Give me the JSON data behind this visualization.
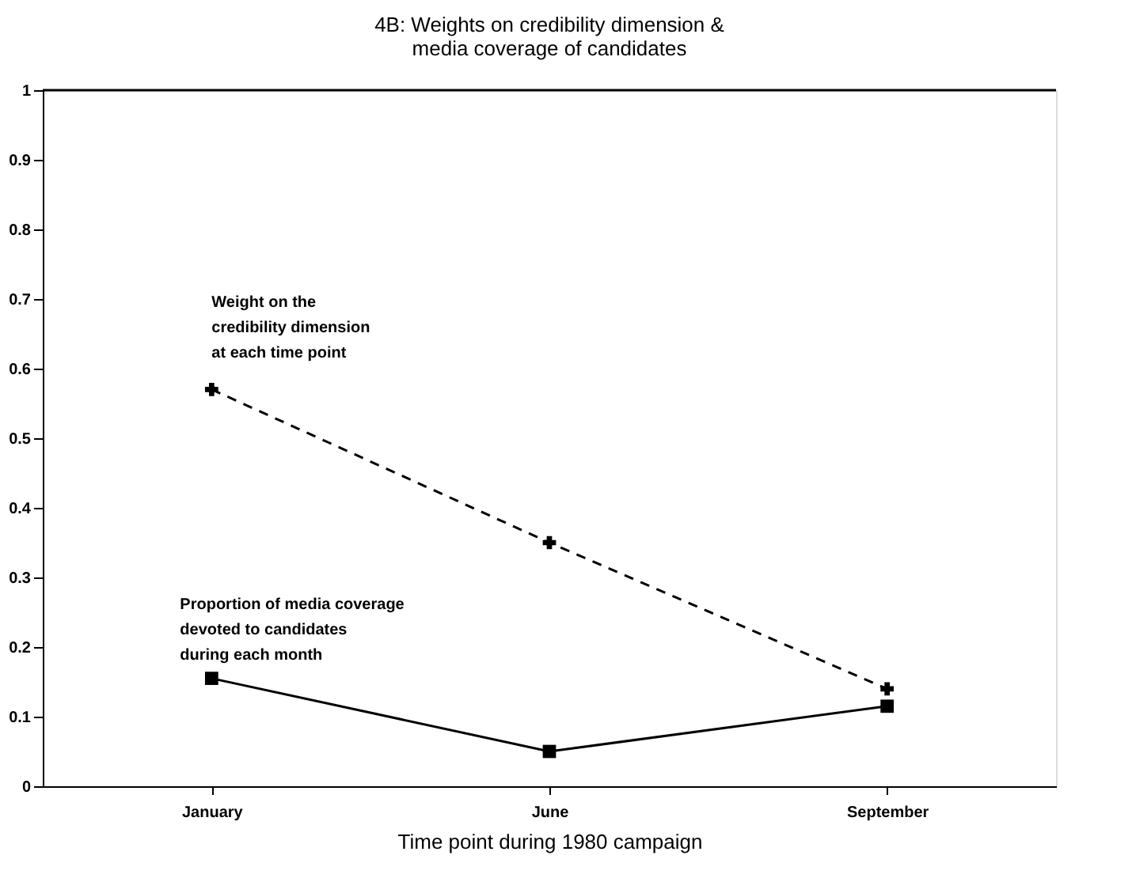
{
  "chart_data": {
    "type": "line",
    "title": "4B: Weights on credibility dimension &\nmedia coverage of candidates",
    "xlabel": "Time point during 1980 campaign",
    "categories": [
      "January",
      "June",
      "September"
    ],
    "series": [
      {
        "name": "Weight on the\ncredibility dimension\nat each time point",
        "color": "#000000",
        "values": [
          0.57,
          0.35,
          0.14
        ],
        "marker": "cross",
        "line_style": "dashed"
      },
      {
        "name": "Proportion of media coverage\ndevoted to candidates\nduring each month",
        "color": "#000000",
        "values": [
          0.155,
          0.05,
          0.115
        ],
        "marker": "square",
        "line_style": "solid"
      }
    ],
    "ylim": [
      0,
      1
    ],
    "yticks": [
      0,
      0.1,
      0.2,
      0.3,
      0.4,
      0.5,
      0.6,
      0.7,
      0.8,
      0.9,
      1
    ],
    "grid": false,
    "legend": false
  }
}
